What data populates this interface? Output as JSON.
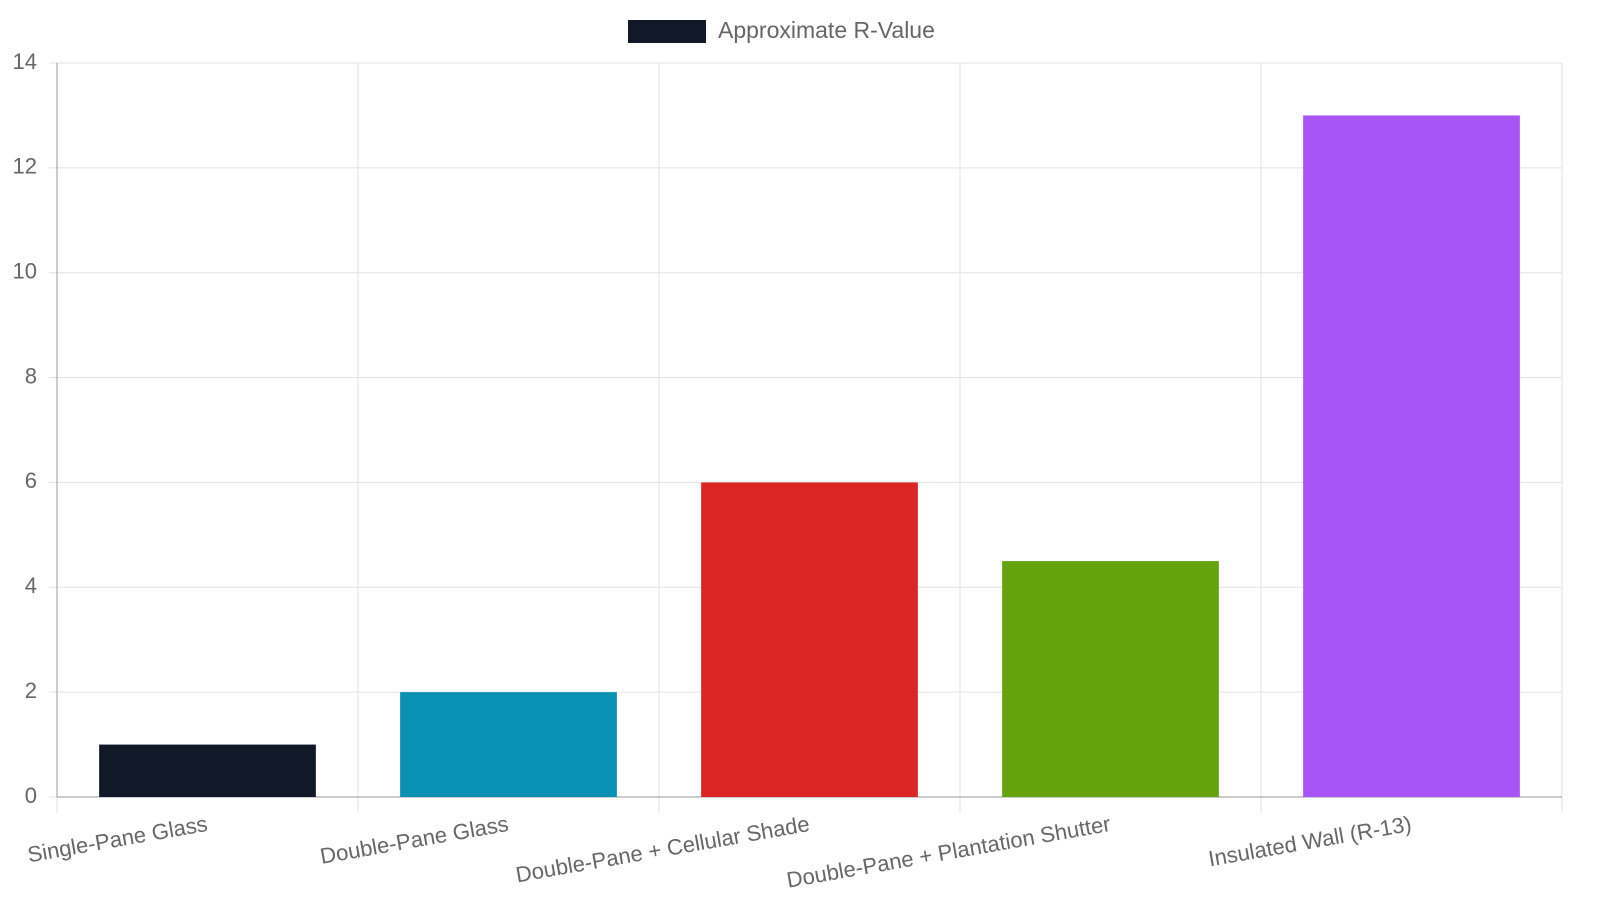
{
  "chart_data": {
    "type": "bar",
    "categories": [
      "Single-Pane Glass",
      "Double-Pane Glass",
      "Double-Pane + Cellular Shade",
      "Double-Pane + Plantation Shutter",
      "Insulated Wall (R-13)"
    ],
    "series": [
      {
        "name": "Approximate R-Value",
        "colors": [
          "#111827",
          "#0891b2",
          "#dc2626",
          "#65a30d",
          "#a855f7"
        ],
        "values": [
          1,
          2,
          6,
          4.5,
          13
        ]
      }
    ],
    "ylim": [
      0,
      14
    ],
    "yticks": [
      0,
      2,
      4,
      6,
      8,
      10,
      12,
      14
    ],
    "grid": true,
    "legend": "top"
  }
}
